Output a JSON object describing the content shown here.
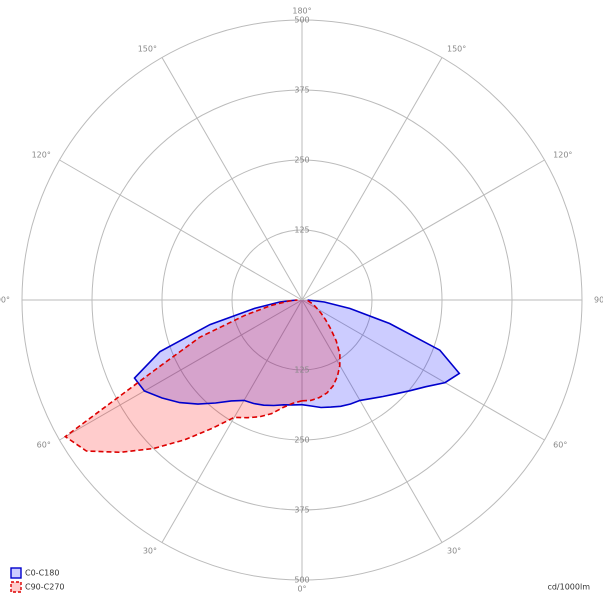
{
  "chart_data": {
    "type": "polar",
    "rlim": [
      0,
      500
    ],
    "rticks": [
      125,
      250,
      375,
      500
    ],
    "angle_ticks": [
      {
        "value": 0,
        "label": "0°"
      },
      {
        "value": 30,
        "label": "30°"
      },
      {
        "value": 60,
        "label": "60°"
      },
      {
        "value": 90,
        "label": "90°"
      },
      {
        "value": 120,
        "label": "120°"
      },
      {
        "value": 150,
        "label": "150°"
      },
      {
        "value": 180,
        "label": "180°"
      }
    ],
    "unit_label": "cd/1000lm",
    "angles": [
      0,
      5,
      10,
      15,
      20,
      25,
      30,
      35,
      40,
      45,
      50,
      55,
      60,
      65,
      70,
      75,
      80,
      85,
      90
    ],
    "series": [
      {
        "name": "C0-C180",
        "color": "#0000cc",
        "fill": "rgba(0,0,255,0.2)",
        "dashed": false,
        "right_values": [
          187,
          190,
          195,
          198,
          202,
          205,
          207,
          215,
          225,
          237,
          252,
          270,
          295,
          310,
          262,
          162,
          87,
          40,
          10
        ],
        "left_values": [
          187,
          188,
          190,
          195,
          200,
          204,
          207,
          220,
          240,
          263,
          285,
          305,
          325,
          330,
          270,
          170,
          86,
          40,
          10
        ]
      },
      {
        "name": "C90-C270",
        "color": "#dd0000",
        "fill": "rgba(255,0,0,0.2)",
        "dashed": true,
        "right_values": [
          180,
          180,
          177,
          172,
          163,
          150,
          135,
          118,
          95,
          72,
          55,
          42,
          32,
          25,
          20,
          15,
          12,
          10,
          8
        ],
        "left_values": [
          180,
          185,
          195,
          210,
          222,
          232,
          242,
          280,
          326,
          375,
          423,
          470,
          488,
          280,
          194,
          105,
          55,
          25,
          8
        ]
      }
    ]
  }
}
